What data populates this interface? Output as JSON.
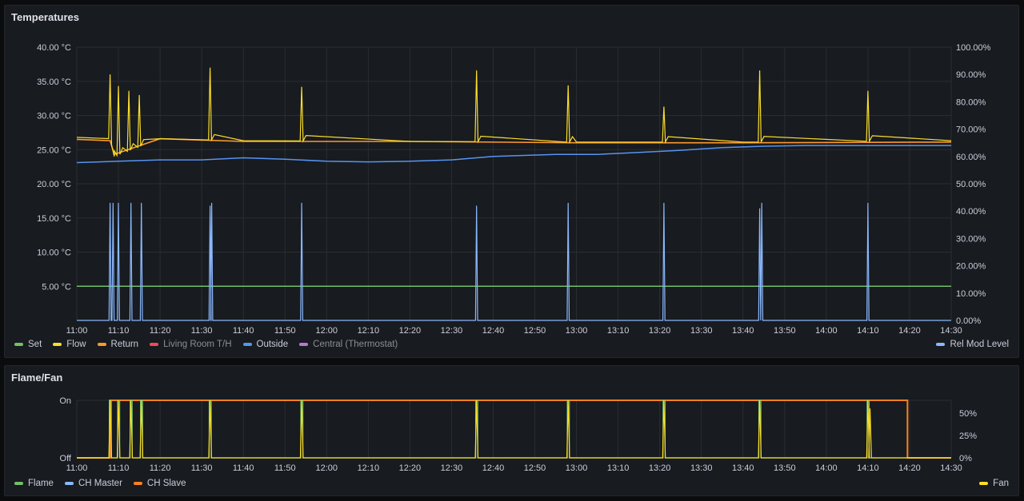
{
  "panels": {
    "temperatures": {
      "title": "Temperatures",
      "legend_left": [
        {
          "label": "Set",
          "color": "#73bf69",
          "dim": false
        },
        {
          "label": "Flow",
          "color": "#fade2a",
          "dim": false
        },
        {
          "label": "Return",
          "color": "#ff9830",
          "dim": false
        },
        {
          "label": "Living Room T/H",
          "color": "#f2495c",
          "dim": true
        },
        {
          "label": "Outside",
          "color": "#5794f2",
          "dim": false
        },
        {
          "label": "Central (Thermostat)",
          "color": "#b877d9",
          "dim": true
        }
      ],
      "legend_right": [
        {
          "label": "Rel Mod Level",
          "color": "#8ab8ff",
          "dim": false
        }
      ]
    },
    "flame_fan": {
      "title": "Flame/Fan",
      "legend_left": [
        {
          "label": "Flame",
          "color": "#73bf69",
          "dim": false
        },
        {
          "label": "CH Master",
          "color": "#8ab8ff",
          "dim": false
        },
        {
          "label": "CH Slave",
          "color": "#ff7f1f",
          "dim": false
        }
      ],
      "legend_right": [
        {
          "label": "Fan",
          "color": "#fade2a",
          "dim": false
        }
      ]
    }
  },
  "chart_data": [
    {
      "type": "line",
      "title": "Temperatures",
      "x_ticks": [
        "11:00",
        "11:10",
        "11:20",
        "11:30",
        "11:40",
        "11:50",
        "12:00",
        "12:10",
        "12:20",
        "12:30",
        "12:40",
        "12:50",
        "13:00",
        "13:10",
        "13:20",
        "13:30",
        "13:40",
        "13:50",
        "14:00",
        "14:10",
        "14:20",
        "14:30"
      ],
      "xlim_minutes": [
        0,
        210
      ],
      "y_left_ticks": [
        "40.00 °C",
        "35.00 °C",
        "30.00 °C",
        "25.00 °C",
        "20.00 °C",
        "15.00 °C",
        "10.00 °C",
        "5.00 °C"
      ],
      "ylim_left": [
        0,
        40
      ],
      "y_right_ticks": [
        "100.00%",
        "90.00%",
        "80.00%",
        "70.00%",
        "60.00%",
        "50.00%",
        "40.00%",
        "30.00%",
        "20.00%",
        "10.00%",
        "0.00%"
      ],
      "ylim_right": [
        0,
        100
      ],
      "series": [
        {
          "name": "Set",
          "axis": "left",
          "color": "#73bf69",
          "x": [
            0,
            210
          ],
          "y": [
            5,
            5
          ]
        },
        {
          "name": "Flow",
          "axis": "left",
          "color": "#fade2a",
          "baseline": [
            [
              0,
              26.8
            ],
            [
              8,
              26.6
            ],
            [
              9,
              24.0
            ],
            [
              20,
              26.6
            ],
            [
              40,
              26.3
            ],
            [
              80,
              26.2
            ],
            [
              120,
              26.1
            ],
            [
              160,
              26.1
            ],
            [
              210,
              26.3
            ]
          ],
          "spikes": [
            [
              8,
              36.0
            ],
            [
              10,
              34.3
            ],
            [
              12.5,
              33.6
            ],
            [
              15,
              33.0
            ],
            [
              32,
              37.0
            ],
            [
              54,
              34.2
            ],
            [
              96,
              36.6
            ],
            [
              118,
              34.4
            ],
            [
              141,
              31.3
            ],
            [
              164,
              36.6
            ],
            [
              190,
              33.6
            ]
          ]
        },
        {
          "name": "Return",
          "axis": "left",
          "color": "#ff9830",
          "baseline": [
            [
              0,
              26.5
            ],
            [
              8,
              26.3
            ],
            [
              9,
              24.3
            ],
            [
              20,
              26.6
            ],
            [
              40,
              26.2
            ],
            [
              80,
              26.2
            ],
            [
              120,
              26.0
            ],
            [
              160,
              26.0
            ],
            [
              210,
              26.1
            ]
          ],
          "spikes": []
        },
        {
          "name": "Outside",
          "axis": "left",
          "color": "#5794f2",
          "points": [
            [
              0,
              23.1
            ],
            [
              10,
              23.3
            ],
            [
              20,
              23.5
            ],
            [
              30,
              23.5
            ],
            [
              40,
              23.8
            ],
            [
              50,
              23.6
            ],
            [
              60,
              23.3
            ],
            [
              70,
              23.2
            ],
            [
              80,
              23.3
            ],
            [
              90,
              23.5
            ],
            [
              100,
              24.0
            ],
            [
              115,
              24.3
            ],
            [
              125,
              24.3
            ],
            [
              135,
              24.6
            ],
            [
              145,
              24.9
            ],
            [
              155,
              25.3
            ],
            [
              165,
              25.5
            ],
            [
              175,
              25.6
            ],
            [
              190,
              25.6
            ],
            [
              210,
              25.6
            ]
          ]
        },
        {
          "name": "Rel Mod Level",
          "axis": "right",
          "color": "#8ab8ff",
          "baseline": 0,
          "spikes": [
            [
              8,
              43
            ],
            [
              8.7,
              43
            ],
            [
              10,
              43
            ],
            [
              13,
              43
            ],
            [
              15.5,
              43
            ],
            [
              32,
              42
            ],
            [
              32.4,
              43
            ],
            [
              54,
              43
            ],
            [
              96,
              42
            ],
            [
              118,
              43
            ],
            [
              141,
              43
            ],
            [
              164,
              41
            ],
            [
              164.5,
              43
            ],
            [
              190,
              43
            ]
          ]
        }
      ]
    },
    {
      "type": "line",
      "title": "Flame/Fan",
      "x_ticks": [
        "11:00",
        "11:10",
        "11:20",
        "11:30",
        "11:40",
        "11:50",
        "12:00",
        "12:10",
        "12:20",
        "12:30",
        "12:40",
        "12:50",
        "13:00",
        "13:10",
        "13:20",
        "13:30",
        "13:40",
        "13:50",
        "14:00",
        "14:10",
        "14:20",
        "14:30"
      ],
      "xlim_minutes": [
        0,
        210
      ],
      "y_left_ticks": [
        "On",
        "Off"
      ],
      "y_right_ticks": [
        "50%",
        "25%",
        "0%"
      ],
      "ylim_right": [
        0,
        64
      ],
      "series": [
        {
          "name": "CH Slave",
          "color": "#ff7f1f",
          "on_from": 8,
          "on_to": 199.5
        },
        {
          "name": "Flame",
          "color": "#73bf69",
          "on_spikes": [
            8,
            10,
            13,
            15.5,
            32,
            54,
            96,
            118,
            141,
            164,
            190
          ]
        },
        {
          "name": "Fan",
          "axis": "right",
          "color": "#fade2a",
          "spikes": [
            [
              8,
              64
            ],
            [
              10,
              64
            ],
            [
              13,
              64
            ],
            [
              15.5,
              64
            ],
            [
              32,
              64
            ],
            [
              54,
              64
            ],
            [
              96,
              64
            ],
            [
              118,
              64
            ],
            [
              141,
              64
            ],
            [
              164,
              64
            ],
            [
              190,
              64
            ],
            [
              190.5,
              55
            ]
          ]
        }
      ]
    }
  ]
}
